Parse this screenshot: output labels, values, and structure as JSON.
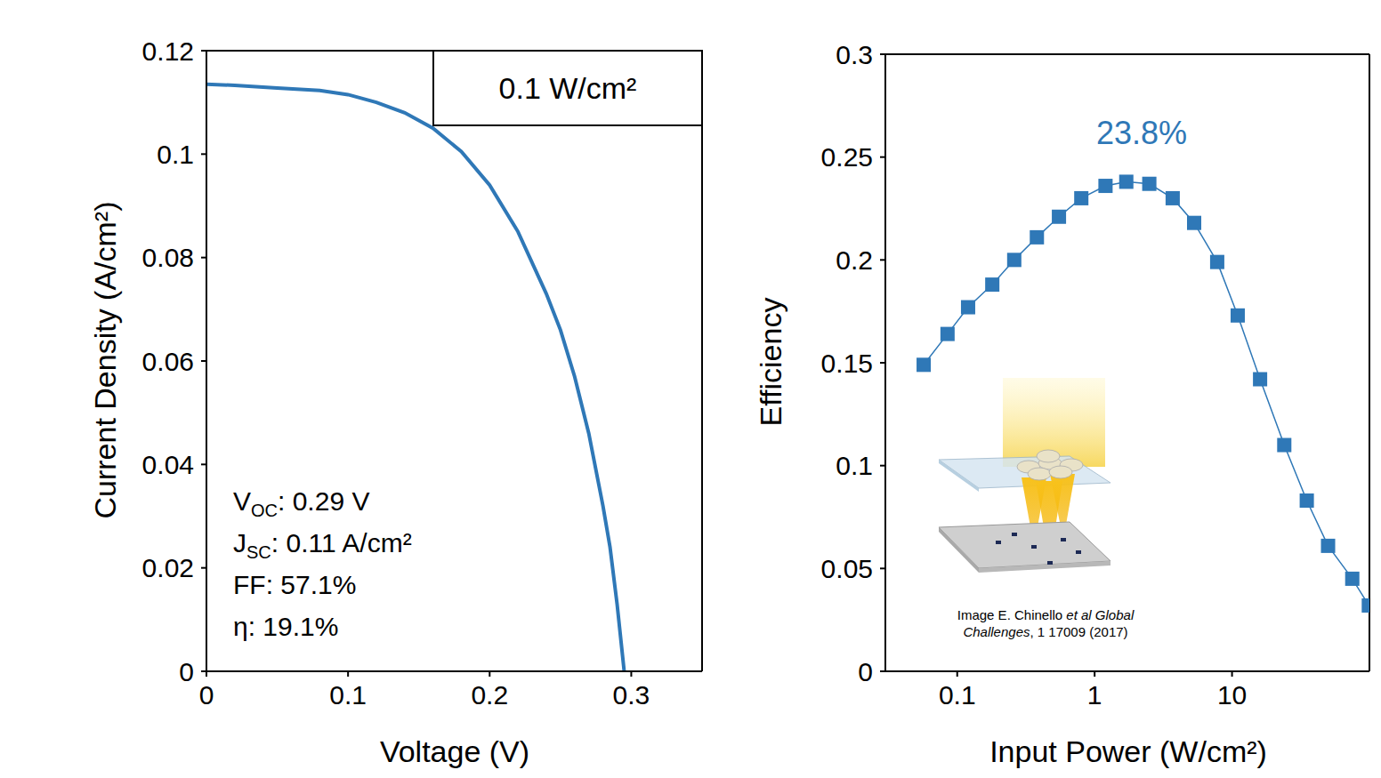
{
  "chart_data": [
    {
      "type": "line",
      "x_label": "Voltage (V)",
      "y_label": "Current Density (A/cm²)",
      "x": [
        0,
        0.02,
        0.05,
        0.08,
        0.1,
        0.12,
        0.14,
        0.16,
        0.18,
        0.2,
        0.22,
        0.24,
        0.25,
        0.26,
        0.27,
        0.28,
        0.285,
        0.29,
        0.295
      ],
      "values": [
        0.1135,
        0.1133,
        0.1128,
        0.1123,
        0.1115,
        0.11,
        0.108,
        0.105,
        0.1005,
        0.094,
        0.085,
        0.073,
        0.066,
        0.057,
        0.046,
        0.032,
        0.024,
        0.013,
        0
      ],
      "color": "#2f78b7",
      "line_style": "solid",
      "xlim": [
        0,
        0.35
      ],
      "xticks": [
        0,
        0.1,
        0.2,
        0.3
      ],
      "ylim": [
        0,
        0.12
      ],
      "yticks": [
        0,
        0.02,
        0.04,
        0.06,
        0.08,
        0.1,
        0.12
      ],
      "grid": false,
      "annotations": [
        "0.1 W/cm²"
      ],
      "parameters": [
        {
          "label": "V",
          "sub": "OC",
          "text": ": 0.29 V"
        },
        {
          "label": "J",
          "sub": "SC",
          "text": ": 0.11 A/cm²"
        },
        {
          "label": "FF",
          "text": ": 57.1%"
        },
        {
          "label": "η",
          "text": ": 19.1%"
        }
      ]
    },
    {
      "type": "line",
      "x_label": "Input Power (W/cm²)",
      "y_label": "Efficiency",
      "log": "x",
      "x": [
        0.057,
        0.085,
        0.12,
        0.18,
        0.26,
        0.38,
        0.55,
        0.8,
        1.2,
        1.7,
        2.5,
        3.7,
        5.3,
        7.8,
        11,
        16,
        24,
        35,
        50,
        75,
        99
      ],
      "values": [
        0.149,
        0.164,
        0.177,
        0.188,
        0.2,
        0.211,
        0.221,
        0.23,
        0.236,
        0.238,
        0.237,
        0.23,
        0.218,
        0.199,
        0.173,
        0.142,
        0.11,
        0.083,
        0.061,
        0.045,
        0.032
      ],
      "color": "#2f78b7",
      "marker": "square",
      "line_style": "solid",
      "xlim": [
        0.03,
        100
      ],
      "xticks": [
        0.1,
        1,
        10
      ],
      "ylim": [
        0,
        0.3
      ],
      "yticks": [
        0,
        0.05,
        0.1,
        0.15,
        0.2,
        0.25,
        0.3
      ],
      "grid": false,
      "annotations": [
        "23.8%"
      ],
      "image_credit": [
        {
          "text": "Image E. Chinello "
        },
        {
          "text": "et al Global Challenges",
          "italic": true
        },
        {
          "text": ", 1 17009 (2017)"
        }
      ]
    }
  ]
}
